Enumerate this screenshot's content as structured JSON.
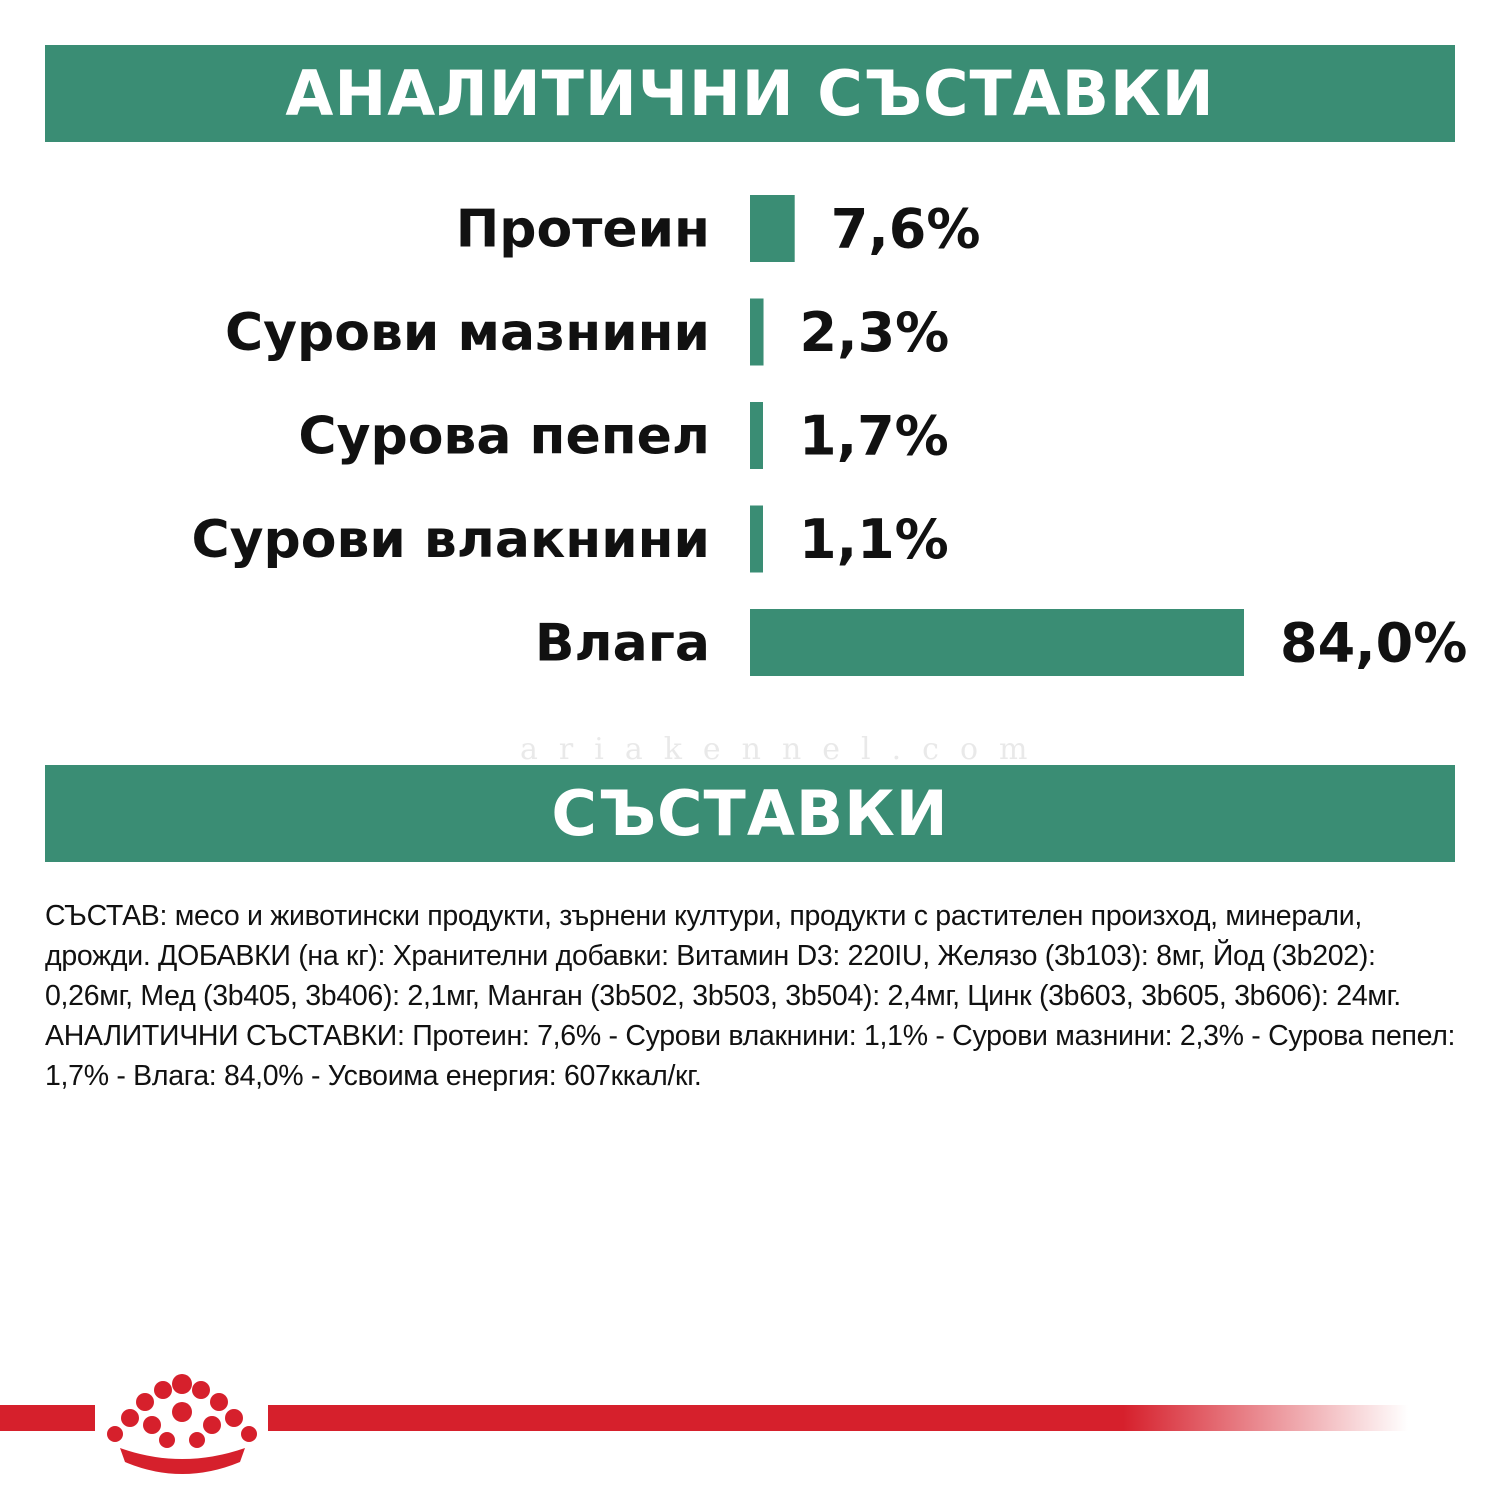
{
  "colors": {
    "accent_green": "#3a8d74",
    "brand_red": "#d6202c",
    "text": "#111111"
  },
  "header_analytical": {
    "title": "АНАЛИТИЧНИ СЪСТАВКИ"
  },
  "header_ingredients": {
    "title": "СЪСТАВКИ"
  },
  "chart_data": {
    "type": "bar",
    "orientation": "horizontal",
    "categories": [
      "Протеин",
      "Сурови мазнини",
      "Сурова пепел",
      "Сурови влакнини",
      "Влага"
    ],
    "values": [
      7.6,
      2.3,
      1.7,
      1.1,
      84.0
    ],
    "value_labels": [
      "7,6%",
      "2,3%",
      "1,7%",
      "1,1%",
      "84,0%"
    ],
    "unit": "%",
    "xlim": [
      0,
      84.0
    ],
    "grid": false,
    "legend": "none"
  },
  "composition_text": "СЪСТАВ: месо и животински продукти, зърнени култури, продукти с растителен произход, минерали, дрожди. ДОБАВКИ (на кг): Хранителни добавки: Витамин D3: 220IU, Желязо (3b103): 8мг, Йод (3b202): 0,26мг, Мед (3b405, 3b406): 2,1мг, Манган (3b502, 3b503, 3b504): 2,4мг, Цинк (3b603, 3b605, 3b606): 24мг. АНАЛИТИЧНИ СЪСТАВКИ: Протеин: 7,6% - Сурови влакнини: 1,1% - Сурови мазнини: 2,3% - Сурова пепел: 1,7% - Влага: 84,0% - Усвоима енергия: 607ккал/кг.",
  "watermark": "ariakennel.com",
  "brand_logo": {
    "icon": "royal-canin-crown-icon"
  }
}
